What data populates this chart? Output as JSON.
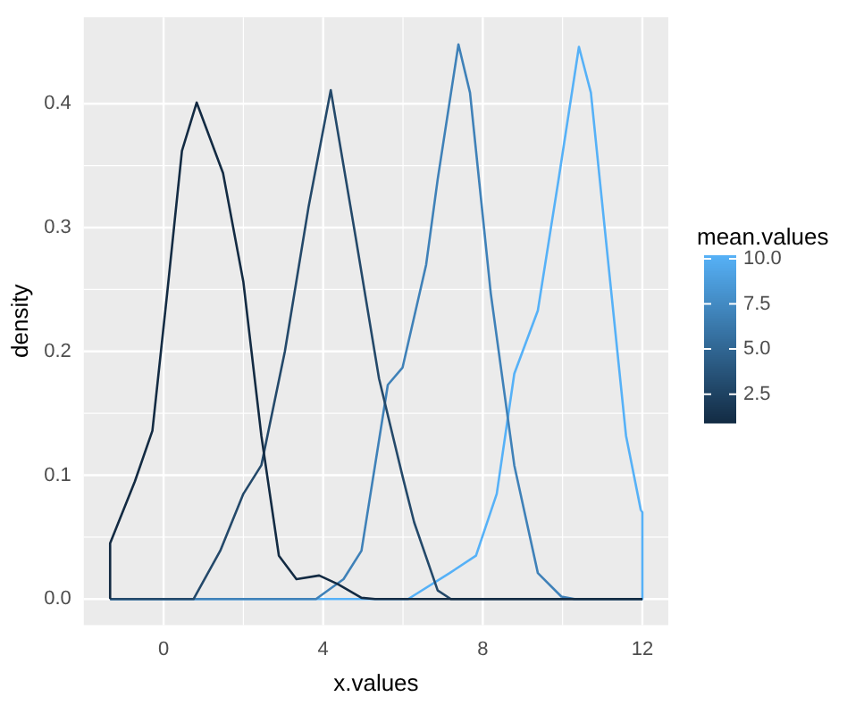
{
  "chart_data": {
    "type": "line",
    "xlabel": "x.values",
    "ylabel": "density",
    "clabel": "mean.values",
    "clim": [
      0.9,
      10.2
    ],
    "cticks": [
      2.5,
      {
        "value": 5,
        "label": "5.0"
      },
      {
        "value": 7.5,
        "label": "7.5"
      },
      {
        "value": 10,
        "label": "10.0"
      }
    ],
    "xlim": [
      -2,
      12.65
    ],
    "xticks": [
      0,
      4,
      8,
      12
    ],
    "ylim": [
      -0.021,
      0.47
    ],
    "yticks": [
      {
        "value": 0,
        "label": "0.0"
      },
      0.1,
      0.2,
      0.3,
      0.4
    ],
    "grid": true,
    "legend": false,
    "marker": "none",
    "line_style": "solid",
    "series": [
      {
        "color": "#132b43",
        "x": [
          -1.34,
          -1.34,
          -0.72,
          -0.28,
          0.09,
          0.46,
          0.83,
          1.49,
          2.0,
          2.45,
          2.89,
          3.33,
          3.9,
          4.37,
          4.96,
          5.3,
          12
        ],
        "values": [
          0,
          0.045,
          0.095,
          0.136,
          0.247,
          0.362,
          0.401,
          0.344,
          0.256,
          0.132,
          0.035,
          0.016,
          0.019,
          0.012,
          0.001,
          0,
          0
        ]
      },
      {
        "color": "#24496a",
        "x": [
          -1.34,
          0.75,
          1.42,
          2.0,
          2.45,
          3.04,
          3.63,
          4.19,
          4.81,
          5.4,
          5.99,
          6.28,
          6.87,
          7.2,
          12
        ],
        "values": [
          0,
          0,
          0.039,
          0.085,
          0.108,
          0.2,
          0.316,
          0.411,
          0.293,
          0.178,
          0.099,
          0.062,
          0.007,
          0,
          0
        ]
      },
      {
        "color": "#3f81b8",
        "x": [
          -1.34,
          3.82,
          4.51,
          4.96,
          5.62,
          5.99,
          6.58,
          6.87,
          7.39,
          7.68,
          8.2,
          8.79,
          9.38,
          9.97,
          10.3,
          12
        ],
        "values": [
          0,
          0,
          0.016,
          0.039,
          0.173,
          0.187,
          0.27,
          0.339,
          0.448,
          0.409,
          0.247,
          0.108,
          0.021,
          0.002,
          0,
          0
        ]
      },
      {
        "color": "#56b1f7",
        "x": [
          -1.34,
          6.13,
          7.17,
          7.83,
          8.35,
          8.79,
          9.38,
          9.9,
          10.41,
          10.71,
          11.15,
          11.59,
          11.96,
          12,
          12
        ],
        "values": [
          0,
          0,
          0.021,
          0.035,
          0.085,
          0.182,
          0.233,
          0.339,
          0.446,
          0.409,
          0.27,
          0.132,
          0.072,
          0.07,
          0
        ]
      }
    ]
  }
}
